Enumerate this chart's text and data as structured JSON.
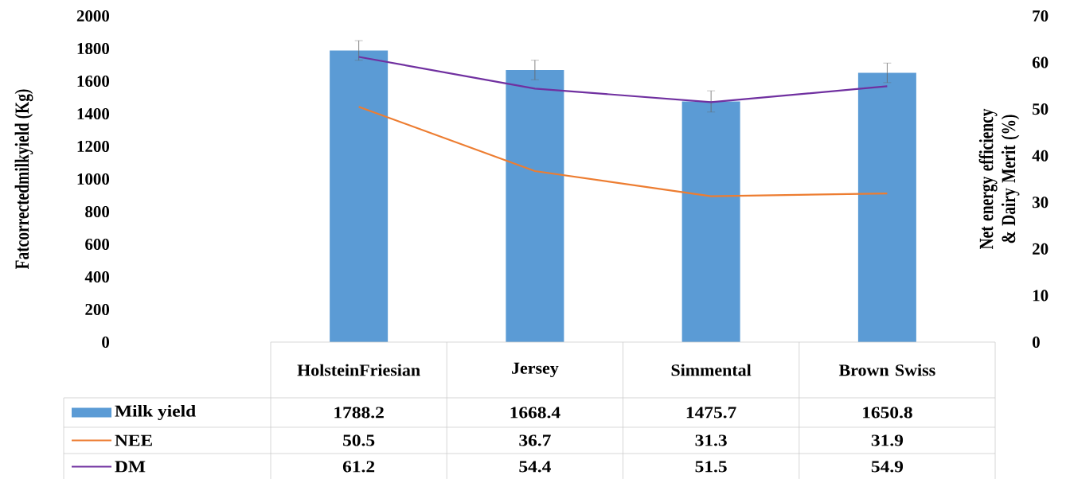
{
  "chart_data": {
    "type": "bar",
    "categories": [
      "HolsteinFriesian",
      "Jersey",
      "Simmental",
      "Brown Swiss"
    ],
    "series": [
      {
        "name": "Milk yield",
        "type": "bar",
        "color": "#5b9bd5",
        "values": [
          1788.2,
          1668.4,
          1475.7,
          1650.8
        ],
        "errors": [
          60,
          60,
          65,
          60
        ]
      },
      {
        "name": "NEE",
        "type": "line",
        "axis": "y2",
        "color": "#ed7d31",
        "values": [
          50.5,
          36.7,
          31.3,
          31.9
        ]
      },
      {
        "name": "DM",
        "type": "line",
        "axis": "y2",
        "color": "#7030a0",
        "values": [
          61.2,
          54.4,
          51.5,
          54.9
        ]
      }
    ],
    "ylabel": "Fatcorrectedmilkyield (Kg)",
    "y2label": "Net energy efficiency & Dairy Merit (%)",
    "ylim": [
      0,
      2000
    ],
    "yticks": [
      0,
      200,
      400,
      600,
      800,
      1000,
      1200,
      1400,
      1600,
      1800,
      2000
    ],
    "y2lim": [
      0,
      70
    ],
    "y2ticks": [
      0,
      10,
      20,
      30,
      40,
      50,
      60,
      70
    ],
    "data_labels": true,
    "legend": "bottom",
    "grid": false,
    "marker": "none",
    "line_style": "solid"
  }
}
